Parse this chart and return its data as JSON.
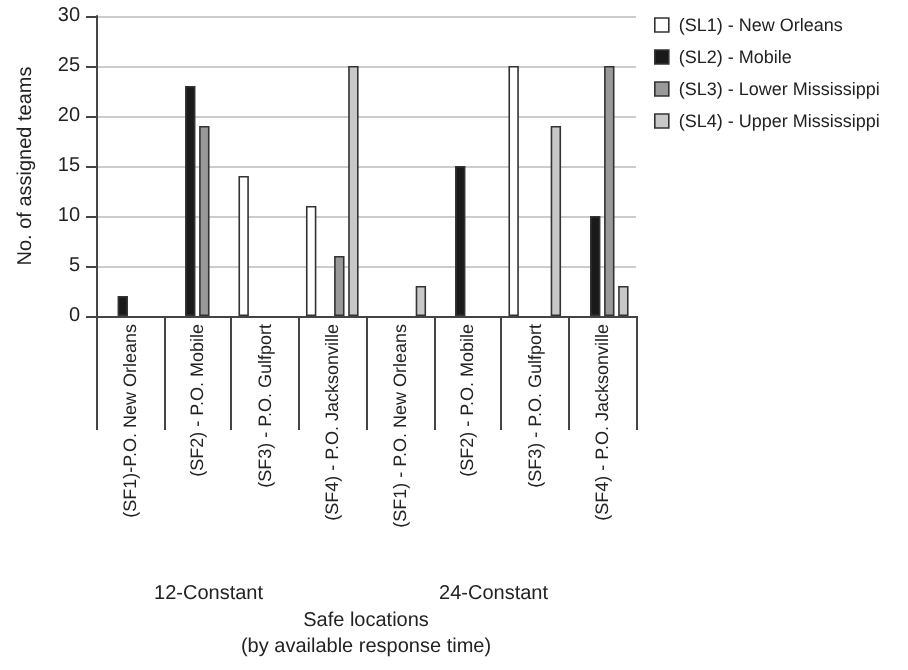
{
  "chart_data": {
    "type": "bar",
    "ylabel": "No. of assigned teams",
    "xlabel": "Safe locations\n(by available response time)",
    "categories": [
      "(SF1)-P.O. New Orleans",
      "(SF2) - P.O. Mobile",
      "(SF3) - P.O. Gulfport",
      "(SF4) - P.O. Jacksonville",
      "(SF1) - P.O. New Orleans",
      "(SF2) - P.O. Mobile",
      "(SF3) - P.O. Gulfport",
      "(SF4) - P.O. Jacksonville"
    ],
    "series": [
      {
        "name": "(SL1) - New Orleans",
        "color": "#ffffff",
        "values": [
          0,
          0,
          14,
          11,
          0,
          0,
          25,
          0
        ]
      },
      {
        "name": "(SL2) - Mobile",
        "color": "#1a1a1a",
        "values": [
          2,
          23,
          0,
          0,
          0,
          15,
          0,
          10
        ]
      },
      {
        "name": "(SL3) - Lower Mississippi",
        "color": "#999999",
        "values": [
          0,
          19,
          0,
          6,
          0,
          0,
          0,
          25
        ]
      },
      {
        "name": "(SL4) - Upper Mississippi",
        "color": "#c8c8c8",
        "values": [
          0,
          0,
          0,
          25,
          3,
          0,
          19,
          3
        ]
      }
    ],
    "annotations": [
      "12-Constant",
      "24-Constant"
    ],
    "ylim": [
      0,
      30
    ],
    "yticks": [
      0,
      5,
      10,
      15,
      20,
      25,
      30
    ],
    "grid": "y",
    "legend": "top right"
  }
}
